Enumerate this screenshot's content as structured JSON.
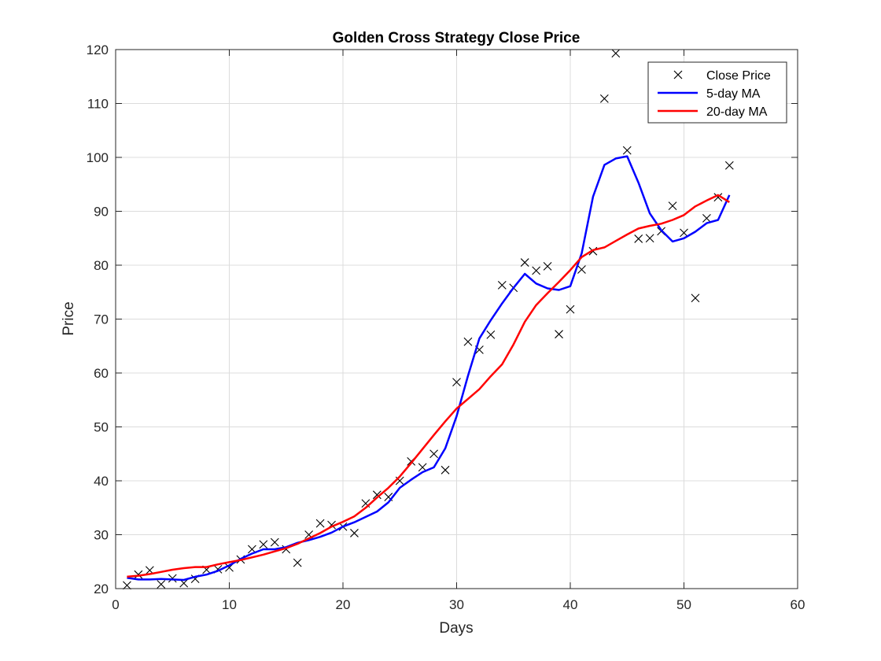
{
  "chart_data": {
    "type": "line",
    "title": "Golden Cross Strategy Close Price",
    "xlabel": "Days",
    "ylabel": "Price",
    "xlim": [
      0,
      60
    ],
    "ylim": [
      20,
      120
    ],
    "xticks": [
      0,
      10,
      20,
      30,
      40,
      50,
      60
    ],
    "yticks": [
      20,
      30,
      40,
      50,
      60,
      70,
      80,
      90,
      100,
      110,
      120
    ],
    "grid": true,
    "legend_position": "top-right",
    "x": [
      1,
      2,
      3,
      4,
      5,
      6,
      7,
      8,
      9,
      10,
      11,
      12,
      13,
      14,
      15,
      16,
      17,
      18,
      19,
      20,
      21,
      22,
      23,
      24,
      25,
      26,
      27,
      28,
      29,
      30,
      31,
      32,
      33,
      34,
      35,
      36,
      37,
      38,
      39,
      40,
      41,
      42,
      43,
      44,
      45,
      46,
      47,
      48,
      49,
      50,
      51,
      52,
      53,
      54
    ],
    "series": [
      {
        "name": "Close Price",
        "style": "marker-x",
        "color": "#000000",
        "values": [
          20.6,
          22.6,
          23.4,
          20.8,
          21.9,
          21.0,
          21.8,
          23.5,
          23.6,
          23.9,
          25.4,
          27.3,
          28.2,
          28.6,
          27.3,
          24.8,
          30.0,
          32.1,
          31.8,
          31.5,
          30.3,
          35.8,
          37.4,
          37.0,
          40.0,
          43.6,
          42.5,
          45.0,
          42.0,
          58.3,
          65.8,
          64.3,
          67.1,
          76.3,
          75.8,
          80.5,
          79.0,
          79.8,
          67.2,
          71.8,
          79.2,
          82.6,
          110.9,
          119.3,
          101.3,
          84.9,
          85.0,
          86.3,
          91.0,
          86.0,
          73.9,
          88.7,
          92.6,
          98.5
        ]
      },
      {
        "name": "5-day MA",
        "style": "line",
        "color": "#0000ff",
        "values": [
          22.0,
          21.7,
          21.7,
          21.8,
          21.7,
          21.6,
          22.2,
          22.6,
          23.3,
          24.3,
          25.5,
          26.5,
          27.3,
          27.3,
          27.7,
          28.5,
          29.0,
          29.6,
          30.4,
          31.5,
          32.3,
          33.3,
          34.3,
          36.0,
          38.7,
          40.2,
          41.6,
          42.5,
          46.0,
          52.0,
          59.5,
          66.4,
          69.8,
          72.9,
          75.8,
          78.4,
          76.6,
          75.7,
          75.4,
          76.1,
          82.2,
          92.7,
          98.6,
          99.8,
          100.2,
          95.3,
          89.6,
          86.5,
          84.4,
          85.0,
          86.2,
          87.8,
          88.4,
          93.0
        ]
      },
      {
        "name": "20-day MA",
        "style": "line",
        "color": "#ff0000",
        "values": [
          22.2,
          22.4,
          22.7,
          23.1,
          23.5,
          23.8,
          24.0,
          24.0,
          24.5,
          24.9,
          25.3,
          25.8,
          26.3,
          26.9,
          27.5,
          28.3,
          29.3,
          30.3,
          31.5,
          32.4,
          33.4,
          35.0,
          36.9,
          38.7,
          40.8,
          43.3,
          45.9,
          48.5,
          51.0,
          53.4,
          55.2,
          57.0,
          59.4,
          61.6,
          65.3,
          69.5,
          72.6,
          74.8,
          76.9,
          79.1,
          81.5,
          82.8,
          83.3,
          84.5,
          85.7,
          86.8,
          87.3,
          87.7,
          88.4,
          89.3,
          90.9,
          92.0,
          93.0,
          91.7
        ]
      }
    ]
  }
}
